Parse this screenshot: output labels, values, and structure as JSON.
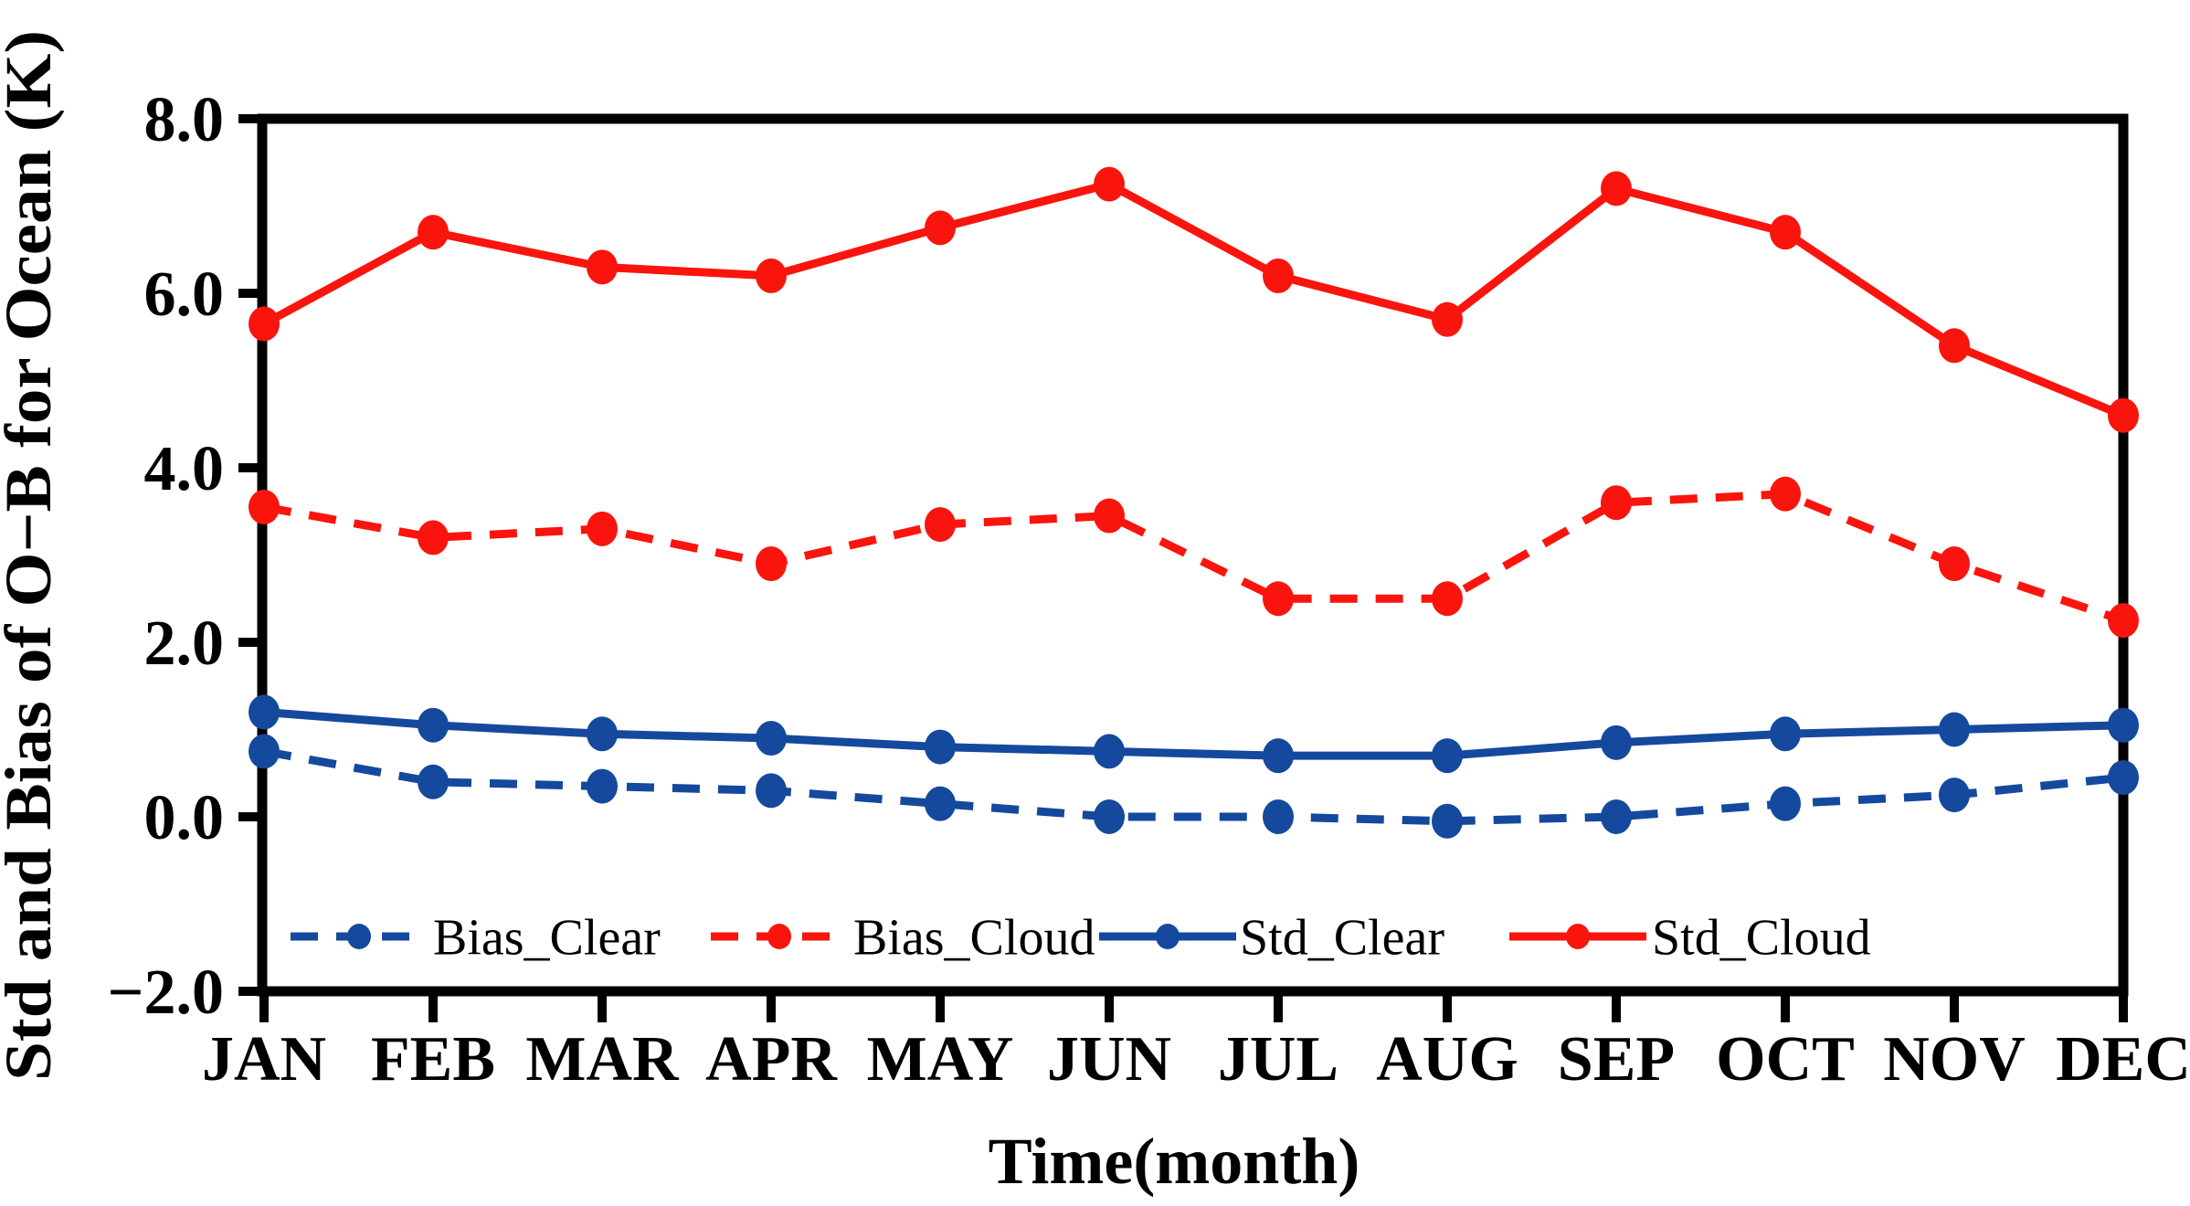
{
  "figure": {
    "background_color": "#ffffff",
    "axis_color": "#000000",
    "y_axis": {
      "title": "Std and Bias of O−B for Ocean (K)",
      "tick_values": [
        8,
        6,
        4,
        2,
        0,
        -2
      ],
      "tick_labels": [
        "8.0",
        "6.0",
        "4.0",
        "2.0",
        "0.0",
        "−2.0"
      ],
      "min": -2,
      "max": 8
    },
    "x_axis": {
      "title": "Time(month)",
      "tick_labels": [
        "JAN",
        "FEB",
        "MAR",
        "APR",
        "MAY",
        "JUN",
        "JUL",
        "AUG",
        "SEP",
        "OCT",
        "NOV",
        "DEC"
      ]
    },
    "legend": {
      "position": "inside-bottom",
      "entries": [
        "Bias_Clear",
        "Bias_Cloud",
        "Std_Clear",
        "Std_Cloud"
      ]
    },
    "colors": {
      "blue": "#14499d",
      "red": "#f9150d"
    }
  },
  "chart_data": {
    "type": "line",
    "title": "",
    "xlabel": "Time(month)",
    "ylabel": "Std and Bias of O−B for Ocean (K)",
    "categories": [
      "JAN",
      "FEB",
      "MAR",
      "APR",
      "MAY",
      "JUN",
      "JUL",
      "AUG",
      "SEP",
      "OCT",
      "NOV",
      "DEC"
    ],
    "ylim": [
      -2,
      8
    ],
    "y_ticks": [
      8,
      6,
      4,
      2,
      0,
      -2
    ],
    "grid": false,
    "legend_position": "bottom-inside",
    "series": [
      {
        "name": "Bias_Clear",
        "color": "#14499d",
        "style": "dashed",
        "marker": "dot",
        "values": [
          0.75,
          0.4,
          0.35,
          0.3,
          0.15,
          0.0,
          0.0,
          -0.05,
          0.0,
          0.15,
          0.25,
          0.45
        ]
      },
      {
        "name": "Bias_Cloud",
        "color": "#f9150d",
        "style": "dashed",
        "marker": "dot",
        "values": [
          3.55,
          3.2,
          3.3,
          2.9,
          3.35,
          3.45,
          2.5,
          2.5,
          3.6,
          3.7,
          2.9,
          2.25
        ]
      },
      {
        "name": "Std_Clear",
        "color": "#14499d",
        "style": "solid",
        "marker": "dot",
        "values": [
          1.2,
          1.05,
          0.95,
          0.9,
          0.8,
          0.75,
          0.7,
          0.7,
          0.85,
          0.95,
          1.0,
          1.05
        ]
      },
      {
        "name": "Std_Cloud",
        "color": "#f9150d",
        "style": "solid",
        "marker": "dot",
        "values": [
          5.65,
          6.7,
          6.3,
          6.2,
          6.75,
          7.25,
          6.2,
          5.7,
          7.2,
          6.7,
          5.4,
          4.6
        ]
      }
    ]
  }
}
